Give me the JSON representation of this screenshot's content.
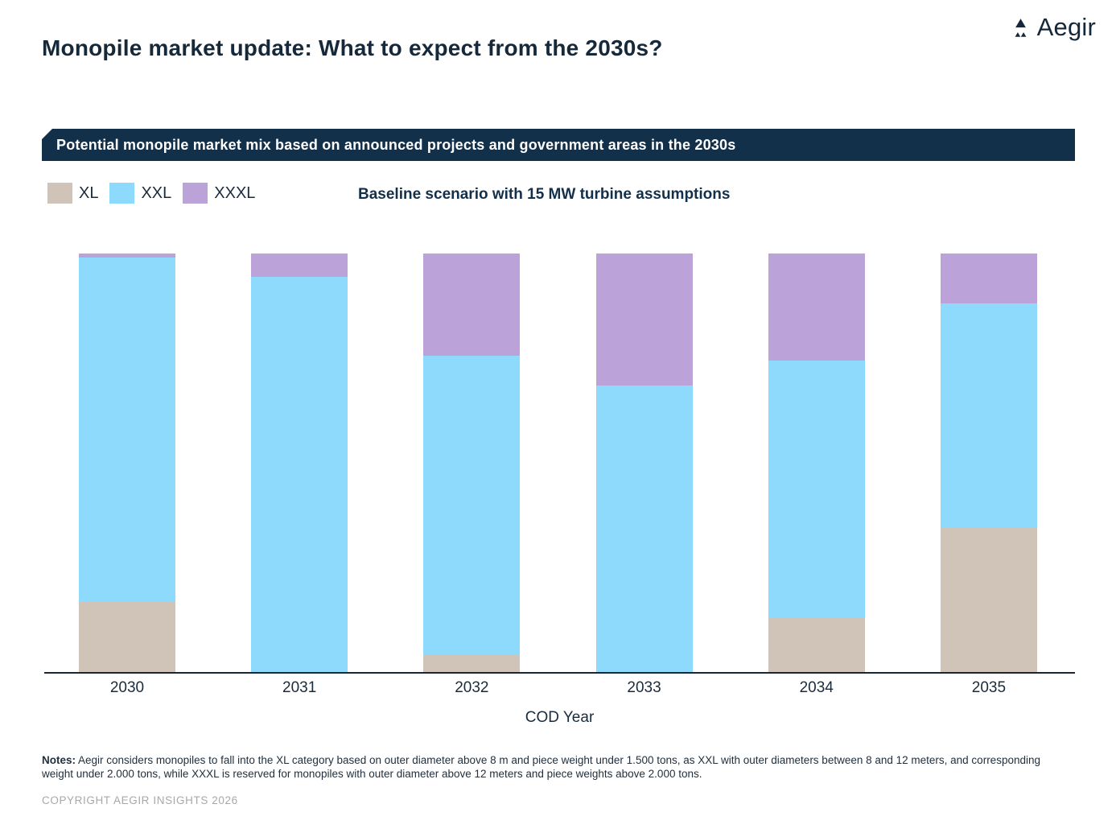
{
  "header": {
    "title": "Monopile market update: What to expect from the 2030s?",
    "logo_text": "Aegir"
  },
  "banner": {
    "text": "Potential monopile market mix based on announced projects and government areas in the 2030s",
    "background_color": "#13304b",
    "text_color": "#ffffff"
  },
  "subtitle": "Baseline scenario with 15 MW turbine assumptions",
  "legend": {
    "items": [
      {
        "label": "XL",
        "color": "#d0c4b8"
      },
      {
        "label": "XXL",
        "color": "#8ddafc"
      },
      {
        "label": "XXXL",
        "color": "#bba2d9"
      }
    ]
  },
  "chart_data": {
    "type": "bar",
    "stacked": true,
    "normalized_percent": true,
    "title": "Potential monopile market mix based on announced projects and government areas in the 2030s",
    "subtitle": "Baseline scenario with 15 MW turbine assumptions",
    "categories": [
      "2030",
      "2031",
      "2032",
      "2033",
      "2034",
      "2035"
    ],
    "series": [
      {
        "name": "XL",
        "color": "#d0c4b8",
        "values": [
          17,
          0,
          4,
          0,
          13,
          34.5
        ]
      },
      {
        "name": "XXL",
        "color": "#8ddafc",
        "values": [
          82,
          94.5,
          71.5,
          68.5,
          61.5,
          53.5
        ]
      },
      {
        "name": "XXXL",
        "color": "#bba2d9",
        "values": [
          1,
          5.5,
          24.5,
          31.5,
          25.5,
          12
        ]
      }
    ],
    "xlabel": "COD Year",
    "ylabel": "",
    "ylim": [
      0,
      100
    ],
    "grid": false,
    "legend_position": "top-left"
  },
  "footer": {
    "notes_label": "Notes:",
    "notes_text": " Aegir considers monopiles to fall into the XL category based on outer diameter above 8 m and piece weight under 1.500 tons, as XXL with outer diameters between 8 and 12 meters, and corresponding weight under 2.000 tons, while XXXL is reserved for monopiles with outer diameter above 12 meters and piece weights above 2.000 tons.",
    "copyright": "COPYRIGHT AEGIR INSIGHTS 2026"
  }
}
